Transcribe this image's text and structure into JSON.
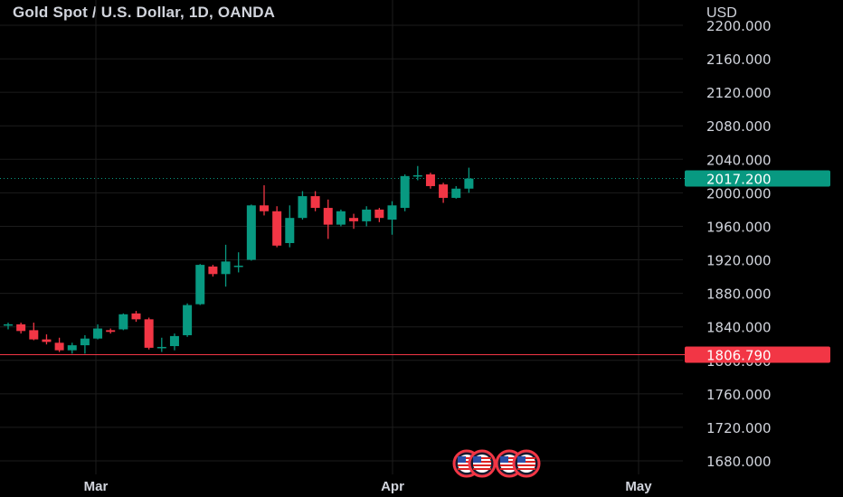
{
  "header": {
    "title": "Gold Spot / U.S. Dollar, 1D, OANDA"
  },
  "chart_data": {
    "type": "candlestick",
    "title": "Gold Spot / U.S. Dollar, 1D, OANDA",
    "ylabel": "USD",
    "ylim": [
      1666,
      2224
    ],
    "y_ticks": [
      "1680.000",
      "1720.000",
      "1760.000",
      "1800.000",
      "1840.000",
      "1880.000",
      "1920.000",
      "1960.000",
      "2000.000",
      "2040.000",
      "2080.000",
      "2120.000",
      "2160.000",
      "2200.000"
    ],
    "x_ticks": [
      "Mar",
      "Apr",
      "May"
    ],
    "grid": true,
    "candles": [
      {
        "o": 1842,
        "h": 1845,
        "l": 1837,
        "c": 1843
      },
      {
        "o": 1843,
        "h": 1845,
        "l": 1832,
        "c": 1835
      },
      {
        "o": 1836,
        "h": 1845,
        "l": 1824,
        "c": 1825
      },
      {
        "o": 1825,
        "h": 1831,
        "l": 1819,
        "c": 1822
      },
      {
        "o": 1821,
        "h": 1827,
        "l": 1810,
        "c": 1812
      },
      {
        "o": 1812,
        "h": 1821,
        "l": 1808,
        "c": 1818
      },
      {
        "o": 1818,
        "h": 1830,
        "l": 1808,
        "c": 1826
      },
      {
        "o": 1826,
        "h": 1843,
        "l": 1825,
        "c": 1838
      },
      {
        "o": 1836,
        "h": 1838,
        "l": 1832,
        "c": 1834
      },
      {
        "o": 1837,
        "h": 1856,
        "l": 1836,
        "c": 1855
      },
      {
        "o": 1856,
        "h": 1859,
        "l": 1846,
        "c": 1849
      },
      {
        "o": 1849,
        "h": 1851,
        "l": 1813,
        "c": 1815
      },
      {
        "o": 1815,
        "h": 1827,
        "l": 1810,
        "c": 1816
      },
      {
        "o": 1817,
        "h": 1832,
        "l": 1812,
        "c": 1829
      },
      {
        "o": 1830,
        "h": 1868,
        "l": 1828,
        "c": 1866
      },
      {
        "o": 1867,
        "h": 1915,
        "l": 1866,
        "c": 1914
      },
      {
        "o": 1912,
        "h": 1914,
        "l": 1900,
        "c": 1903
      },
      {
        "o": 1903,
        "h": 1938,
        "l": 1888,
        "c": 1918
      },
      {
        "o": 1913,
        "h": 1929,
        "l": 1905,
        "c": 1913
      },
      {
        "o": 1920,
        "h": 1986,
        "l": 1919,
        "c": 1985
      },
      {
        "o": 1985,
        "h": 2009,
        "l": 1973,
        "c": 1978
      },
      {
        "o": 1978,
        "h": 1984,
        "l": 1935,
        "c": 1937
      },
      {
        "o": 1940,
        "h": 1985,
        "l": 1935,
        "c": 1970
      },
      {
        "o": 1970,
        "h": 2002,
        "l": 1968,
        "c": 1996
      },
      {
        "o": 1996,
        "h": 2002,
        "l": 1978,
        "c": 1982
      },
      {
        "o": 1982,
        "h": 1992,
        "l": 1945,
        "c": 1962
      },
      {
        "o": 1962,
        "h": 1980,
        "l": 1960,
        "c": 1978
      },
      {
        "o": 1970,
        "h": 1975,
        "l": 1957,
        "c": 1966
      },
      {
        "o": 1966,
        "h": 1984,
        "l": 1960,
        "c": 1980
      },
      {
        "o": 1980,
        "h": 1982,
        "l": 1965,
        "c": 1970
      },
      {
        "o": 1968,
        "h": 1990,
        "l": 1950,
        "c": 1985
      },
      {
        "o": 1982,
        "h": 2022,
        "l": 1978,
        "c": 2020
      },
      {
        "o": 2020,
        "h": 2032,
        "l": 2015,
        "c": 2021
      },
      {
        "o": 2022,
        "h": 2024,
        "l": 2005,
        "c": 2008
      },
      {
        "o": 2010,
        "h": 2012,
        "l": 1988,
        "c": 1994
      },
      {
        "o": 1994,
        "h": 2008,
        "l": 1993,
        "c": 2005
      },
      {
        "o": 2005,
        "h": 2030,
        "l": 2000,
        "c": 2017
      }
    ],
    "current_price": {
      "value": 2017.2,
      "label": "2017.200",
      "color": "#089981"
    },
    "alert_line": {
      "value": 1806.79,
      "label": "1806.790",
      "color": "#f23645"
    },
    "colors": {
      "up": "#089981",
      "down": "#f23645",
      "grid": "#1c1c1c",
      "text": "#d1d4dc"
    },
    "event_icons": [
      "us-flag-icon",
      "us-flag-icon",
      "us-flag-icon",
      "us-flag-icon"
    ]
  }
}
